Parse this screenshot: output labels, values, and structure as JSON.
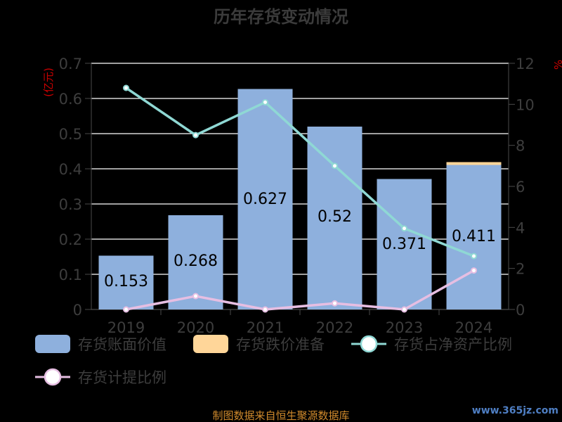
{
  "title": "历年存货变动情况",
  "source": "制图数据来自恒生聚源数据库",
  "watermark": "www.365jz.com",
  "chart_data": {
    "type": "bar",
    "categories": [
      "2019",
      "2020",
      "2021",
      "2022",
      "2023",
      "2024"
    ],
    "y_left": {
      "unit": "(亿元)",
      "ticks": [
        "0",
        "0.1",
        "0.2",
        "0.3",
        "0.4",
        "0.5",
        "0.6",
        "0.7"
      ],
      "ylim": [
        0,
        0.7
      ]
    },
    "y_right": {
      "unit": "%",
      "ticks": [
        "0",
        "2",
        "4",
        "6",
        "8",
        "10",
        "12"
      ],
      "ylim": [
        0,
        12
      ]
    },
    "series": [
      {
        "name": "存货账面价值",
        "kind": "bar",
        "axis": "left",
        "color": "#8eb0dd",
        "values": [
          0.153,
          0.268,
          0.627,
          0.52,
          0.371,
          0.411
        ],
        "labels": [
          "0.153",
          "0.268",
          "0.627",
          "0.52",
          "0.371",
          "0.411"
        ]
      },
      {
        "name": "存货跌价准备",
        "kind": "bar-stack",
        "axis": "left",
        "color": "#ffd699",
        "values": [
          0,
          0,
          0,
          0,
          0,
          0.008
        ]
      },
      {
        "name": "存货占净资产比例",
        "kind": "line",
        "axis": "right",
        "color": "#8fd8d4",
        "values": [
          10.8,
          8.5,
          10.1,
          7.0,
          3.95,
          2.6
        ]
      },
      {
        "name": "存货计提比例",
        "kind": "line",
        "axis": "right",
        "color": "#e6bee2",
        "values": [
          0,
          0.65,
          0,
          0.3,
          0,
          1.9
        ]
      }
    ],
    "grid": true,
    "legend_position": "bottom"
  }
}
